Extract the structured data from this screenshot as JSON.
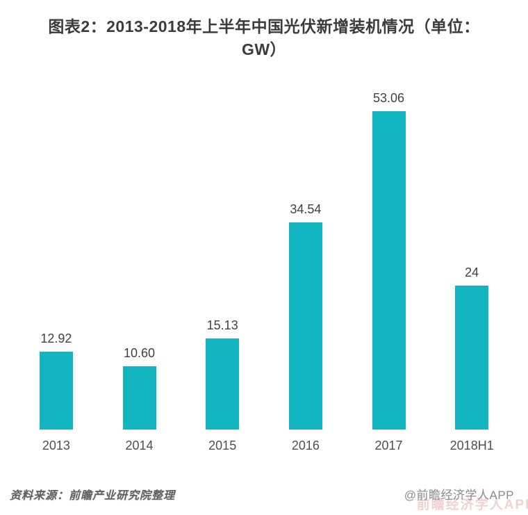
{
  "header": {
    "title_line1": "图表2：2013-2018年上半年中国光伏新增装机情况（单位：",
    "title_line2": "GW）"
  },
  "chart_data": {
    "type": "bar",
    "title": "图表2：2013-2018年上半年中国光伏新增装机情况（单位：GW）",
    "categories": [
      "2013",
      "2014",
      "2015",
      "2016",
      "2017",
      "2018H1"
    ],
    "values": [
      12.92,
      10.6,
      15.13,
      34.54,
      53.06,
      24
    ],
    "value_labels": [
      "12.92",
      "10.60",
      "15.13",
      "34.54",
      "53.06",
      "24"
    ],
    "xlabel": "",
    "ylabel": "",
    "unit": "GW",
    "ylim": [
      0,
      60
    ],
    "grid": false,
    "legend": false,
    "axis_lines": false,
    "bar_color": "#12b5c0",
    "label_color": "#404040"
  },
  "footer": {
    "source_text": "资料来源：前瞻产业研究院整理",
    "credit_text": "@前瞻经济学人APP",
    "watermark_text": "前瞻经济学人APP"
  }
}
